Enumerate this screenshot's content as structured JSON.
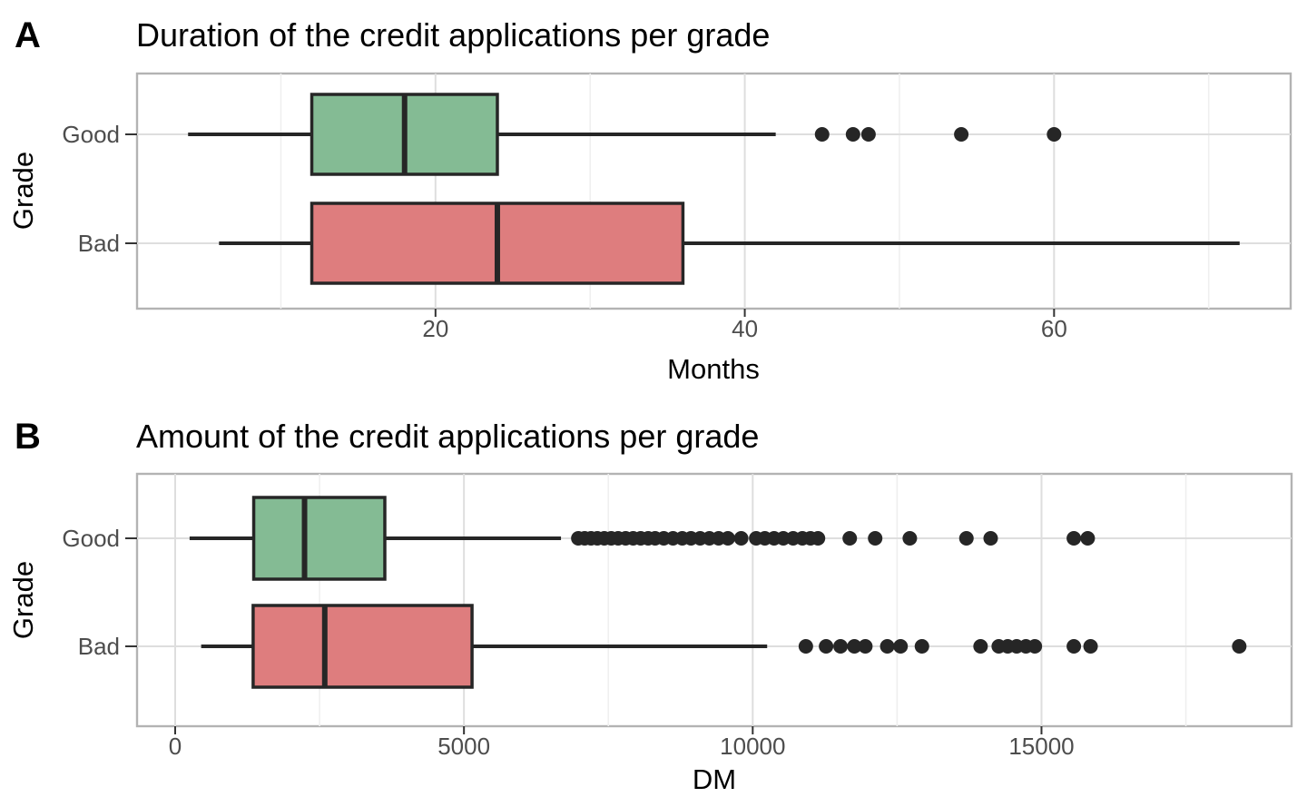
{
  "figure": {
    "kind": "two-panel horizontal boxplot figure",
    "background": "#ffffff"
  },
  "colors": {
    "good_green": "#84bb94",
    "bad_red": "#de7d7e",
    "box_stroke": "#262626",
    "outlier_dot": "#262626",
    "grid_major": "#dedede",
    "grid_minor": "#efefef",
    "panel_border": "#b3b3b3",
    "panel_bg": "#ffffff",
    "tick_mark": "#333333",
    "tick_text": "#4d4d4d",
    "title_text": "#000000"
  },
  "chart_data": [
    {
      "type": "boxplot",
      "orientation": "horizontal",
      "tag": "A",
      "title": "Duration of the credit applications per grade",
      "xlabel": "Months",
      "ylabel": "Grade",
      "xlim": [
        0.7,
        75.3
      ],
      "grid": true,
      "categories": [
        "Good",
        "Bad"
      ],
      "xticks": [
        {
          "value": 20,
          "label": "20"
        },
        {
          "value": 40,
          "label": "40"
        },
        {
          "value": 60,
          "label": "60"
        }
      ],
      "xminor": [
        10,
        30,
        50,
        70
      ],
      "series": [
        {
          "category": "Good",
          "fill": "good_green",
          "whisker_min": 4,
          "q1": 12,
          "median": 18,
          "q3": 24,
          "whisker_max": 42,
          "outliers": [
            45,
            47,
            48,
            54,
            60
          ]
        },
        {
          "category": "Bad",
          "fill": "bad_red",
          "whisker_min": 6,
          "q1": 12,
          "median": 24,
          "q3": 36,
          "whisker_max": 72,
          "outliers": []
        }
      ]
    },
    {
      "type": "boxplot",
      "orientation": "horizontal",
      "tag": "B",
      "title": "Amount of the credit applications per grade",
      "xlabel": "DM",
      "ylabel": "Grade",
      "xlim": [
        -660,
        19330
      ],
      "grid": true,
      "categories": [
        "Good",
        "Bad"
      ],
      "xticks": [
        {
          "value": 0,
          "label": "0"
        },
        {
          "value": 5000,
          "label": "5000"
        },
        {
          "value": 10000,
          "label": "10000"
        },
        {
          "value": 15000,
          "label": "15000"
        }
      ],
      "xminor": [
        2500,
        7500,
        12500,
        17500
      ],
      "series": [
        {
          "category": "Good",
          "fill": "good_green",
          "whisker_min": 250,
          "q1": 1360,
          "median": 2240,
          "q3": 3630,
          "whisker_max": 6680,
          "outliers": [
            6980,
            7090,
            7200,
            7310,
            7430,
            7550,
            7670,
            7800,
            7930,
            8060,
            8190,
            8310,
            8460,
            8620,
            8780,
            8930,
            9090,
            9250,
            9410,
            9570,
            9800,
            10060,
            10210,
            10370,
            10530,
            10700,
            10860,
            11000,
            11130,
            11680,
            12120,
            12720,
            13700,
            14120,
            15560,
            15800
          ]
        },
        {
          "category": "Bad",
          "fill": "bad_red",
          "whisker_min": 450,
          "q1": 1350,
          "median": 2590,
          "q3": 5140,
          "whisker_max": 10250,
          "outliers": [
            10920,
            11270,
            11520,
            11760,
            11950,
            12330,
            12560,
            12930,
            13945,
            14260,
            14415,
            14570,
            14730,
            14885,
            15560,
            15850,
            18424
          ]
        }
      ]
    }
  ]
}
